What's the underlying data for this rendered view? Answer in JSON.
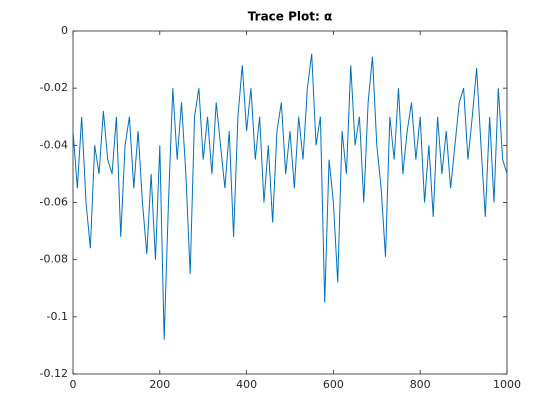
{
  "chart_data": {
    "type": "line",
    "title": "Trace  Plot:  α",
    "color": "#0072bd",
    "x": [
      0,
      10,
      20,
      30,
      40,
      50,
      60,
      70,
      80,
      90,
      100,
      110,
      120,
      130,
      140,
      150,
      160,
      170,
      180,
      190,
      200,
      210,
      220,
      230,
      240,
      250,
      260,
      270,
      280,
      290,
      300,
      310,
      320,
      330,
      340,
      350,
      360,
      370,
      380,
      390,
      400,
      410,
      420,
      430,
      440,
      450,
      460,
      470,
      480,
      490,
      500,
      510,
      520,
      530,
      540,
      550,
      560,
      570,
      580,
      590,
      600,
      610,
      620,
      630,
      640,
      650,
      660,
      670,
      680,
      690,
      700,
      710,
      720,
      730,
      740,
      750,
      760,
      770,
      780,
      790,
      800,
      810,
      820,
      830,
      840,
      850,
      860,
      870,
      880,
      890,
      900,
      910,
      920,
      930,
      940,
      950,
      960,
      970,
      980,
      990,
      1000
    ],
    "values": [
      -0.035,
      -0.055,
      -0.03,
      -0.06,
      -0.076,
      -0.04,
      -0.05,
      -0.028,
      -0.045,
      -0.05,
      -0.03,
      -0.072,
      -0.04,
      -0.03,
      -0.055,
      -0.035,
      -0.06,
      -0.078,
      -0.05,
      -0.08,
      -0.04,
      -0.108,
      -0.06,
      -0.02,
      -0.045,
      -0.025,
      -0.05,
      -0.085,
      -0.03,
      -0.02,
      -0.045,
      -0.03,
      -0.05,
      -0.025,
      -0.04,
      -0.055,
      -0.035,
      -0.072,
      -0.03,
      -0.012,
      -0.035,
      -0.02,
      -0.045,
      -0.03,
      -0.06,
      -0.04,
      -0.067,
      -0.035,
      -0.025,
      -0.05,
      -0.035,
      -0.055,
      -0.03,
      -0.045,
      -0.02,
      -0.008,
      -0.04,
      -0.03,
      -0.095,
      -0.045,
      -0.06,
      -0.088,
      -0.035,
      -0.05,
      -0.012,
      -0.04,
      -0.03,
      -0.06,
      -0.025,
      -0.009,
      -0.04,
      -0.055,
      -0.079,
      -0.03,
      -0.045,
      -0.02,
      -0.05,
      -0.035,
      -0.025,
      -0.045,
      -0.03,
      -0.06,
      -0.04,
      -0.065,
      -0.03,
      -0.05,
      -0.035,
      -0.055,
      -0.04,
      -0.025,
      -0.02,
      -0.045,
      -0.03,
      -0.013,
      -0.04,
      -0.065,
      -0.03,
      -0.06,
      -0.02,
      -0.045,
      -0.05
    ],
    "xlim": [
      0,
      1000
    ],
    "xticks": [
      0,
      200,
      400,
      600,
      800,
      1000
    ],
    "ylim": [
      -0.12,
      0
    ],
    "yticks": [
      -0.12,
      -0.1,
      -0.08,
      -0.06,
      -0.04,
      -0.02,
      0
    ]
  }
}
